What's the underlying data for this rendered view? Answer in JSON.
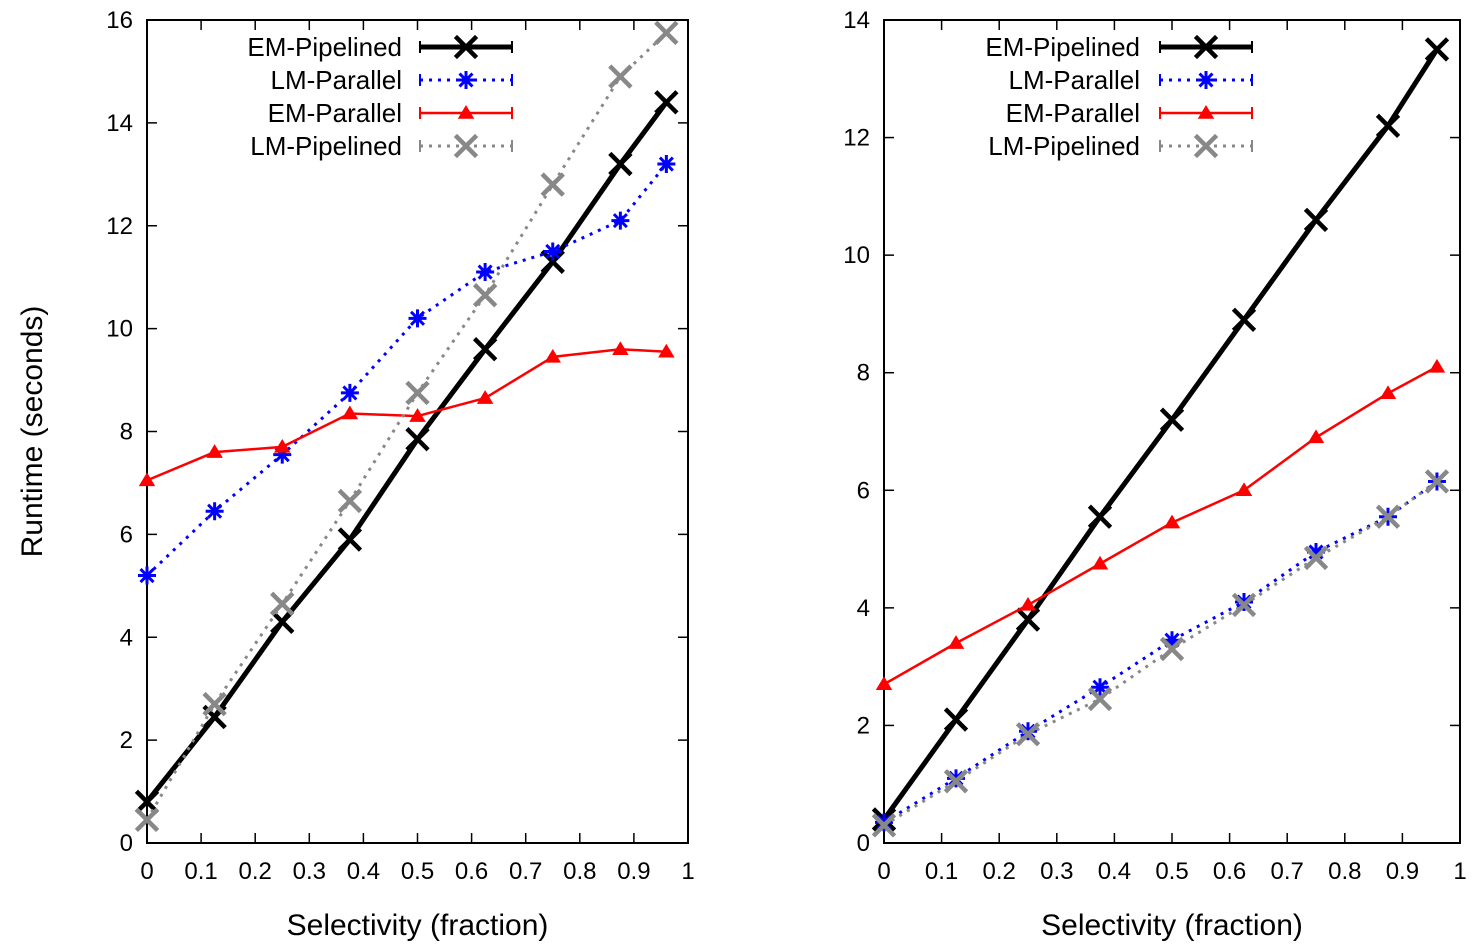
{
  "chart_data": [
    {
      "type": "line",
      "xlabel": "Selectivity (fraction)",
      "ylabel": "Runtime (seconds)",
      "xlim": [
        0,
        1
      ],
      "ylim": [
        0,
        16
      ],
      "x_ticks": [
        "0",
        "0.1",
        "0.2",
        "0.3",
        "0.4",
        "0.5",
        "0.6",
        "0.7",
        "0.8",
        "0.9",
        "1"
      ],
      "y_ticks": [
        "0",
        "2",
        "4",
        "6",
        "8",
        "10",
        "12",
        "14",
        "16"
      ],
      "legend_position": "top-left",
      "grid": false,
      "x": [
        0,
        0.125,
        0.25,
        0.375,
        0.5,
        0.625,
        0.75,
        0.875,
        0.96
      ],
      "series": [
        {
          "name": "EM-Pipelined",
          "color": "#000000",
          "marker": "x",
          "dash": "solid",
          "width": 5,
          "values": [
            0.8,
            2.45,
            4.3,
            5.9,
            7.85,
            9.6,
            11.3,
            13.2,
            14.4
          ]
        },
        {
          "name": "LM-Parallel",
          "color": "#0000ff",
          "marker": "star",
          "dash": "dotted",
          "width": 3,
          "values": [
            5.2,
            6.45,
            7.55,
            8.75,
            10.2,
            11.1,
            11.5,
            12.1,
            13.2
          ]
        },
        {
          "name": "EM-Parallel",
          "color": "#ff0000",
          "marker": "triangle",
          "dash": "solid",
          "width": 2.5,
          "values": [
            7.05,
            7.6,
            7.7,
            8.35,
            8.3,
            8.65,
            9.45,
            9.6,
            9.55
          ]
        },
        {
          "name": "LM-Pipelined",
          "color": "#888888",
          "marker": "x",
          "dash": "dotted",
          "width": 3,
          "values": [
            0.45,
            2.7,
            4.65,
            6.65,
            8.75,
            10.65,
            12.8,
            14.9,
            15.75
          ]
        }
      ]
    },
    {
      "type": "line",
      "xlabel": "Selectivity (fraction)",
      "ylabel": "",
      "xlim": [
        0,
        1
      ],
      "ylim": [
        0,
        14
      ],
      "x_ticks": [
        "0",
        "0.1",
        "0.2",
        "0.3",
        "0.4",
        "0.5",
        "0.6",
        "0.7",
        "0.8",
        "0.9",
        "1"
      ],
      "y_ticks": [
        "0",
        "2",
        "4",
        "6",
        "8",
        "10",
        "12",
        "14"
      ],
      "legend_position": "top-left",
      "grid": false,
      "x": [
        0,
        0.125,
        0.25,
        0.375,
        0.5,
        0.625,
        0.75,
        0.875,
        0.96
      ],
      "series": [
        {
          "name": "EM-Pipelined",
          "color": "#000000",
          "marker": "x",
          "dash": "solid",
          "width": 5,
          "values": [
            0.4,
            2.1,
            3.8,
            5.55,
            7.2,
            8.9,
            10.6,
            12.2,
            13.5
          ]
        },
        {
          "name": "LM-Parallel",
          "color": "#0000ff",
          "marker": "star",
          "dash": "dotted",
          "width": 3,
          "values": [
            0.35,
            1.1,
            1.9,
            2.65,
            3.45,
            4.1,
            4.95,
            5.55,
            6.15
          ]
        },
        {
          "name": "EM-Parallel",
          "color": "#ff0000",
          "marker": "triangle",
          "dash": "solid",
          "width": 2.5,
          "values": [
            2.7,
            3.4,
            4.05,
            4.75,
            5.45,
            6.0,
            6.9,
            7.65,
            8.1
          ]
        },
        {
          "name": "LM-Pipelined",
          "color": "#888888",
          "marker": "x",
          "dash": "dotted",
          "width": 3,
          "values": [
            0.3,
            1.05,
            1.85,
            2.45,
            3.3,
            4.05,
            4.85,
            5.55,
            6.15
          ]
        }
      ]
    }
  ]
}
